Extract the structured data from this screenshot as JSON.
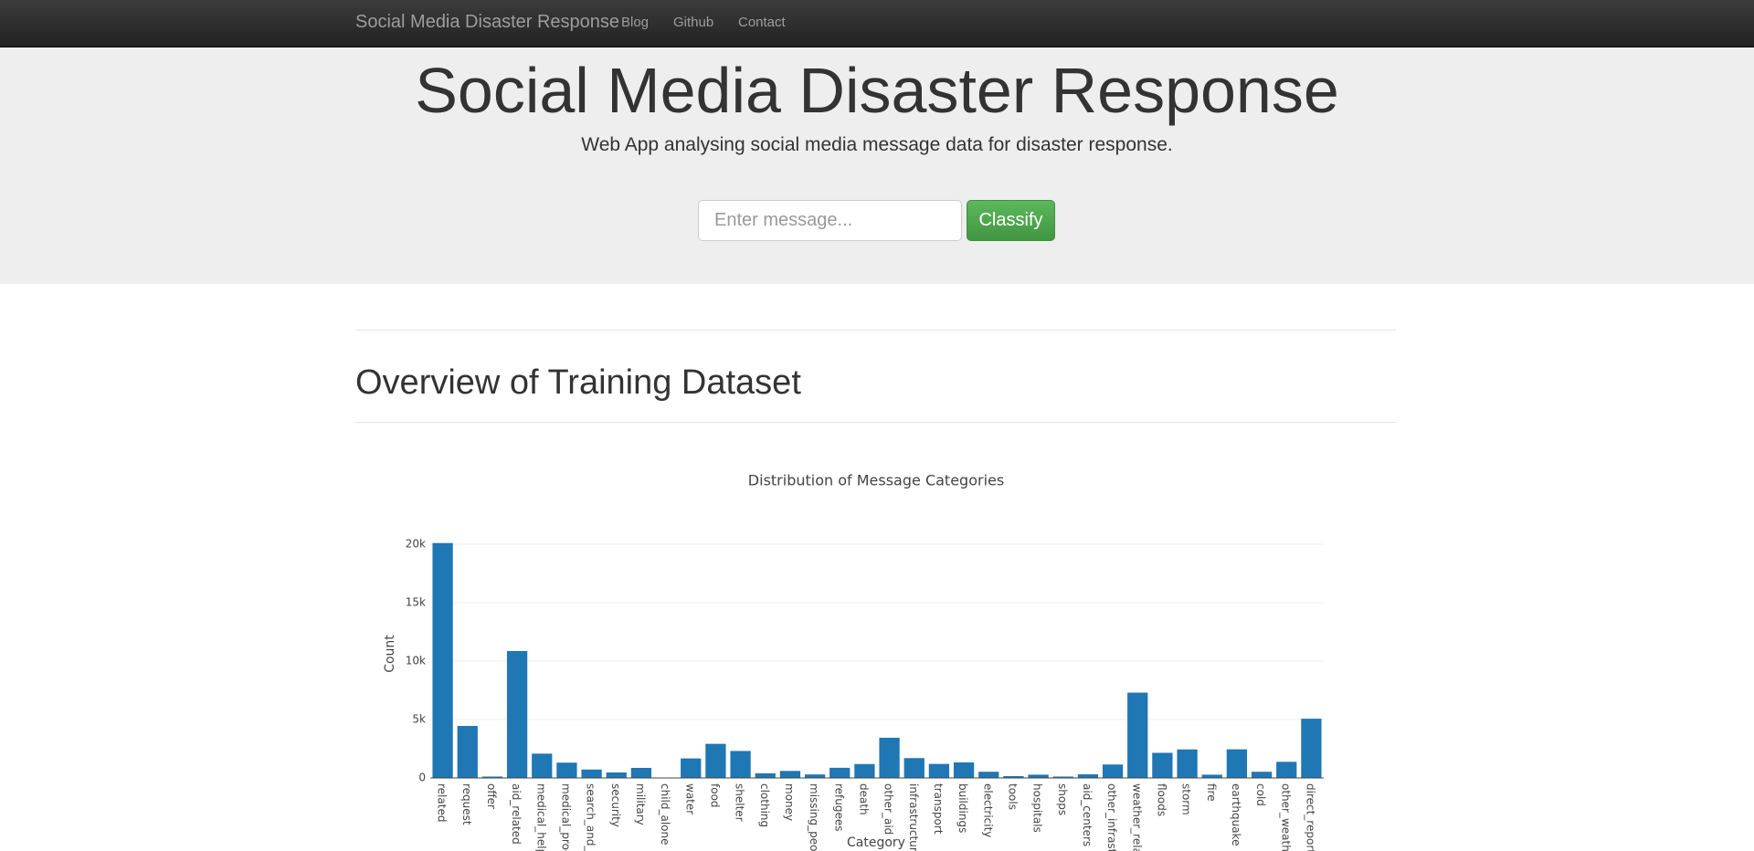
{
  "navbar": {
    "brand": "Social Media Disaster Response",
    "links": [
      "Blog",
      "Github",
      "Contact"
    ]
  },
  "jumbotron": {
    "title": "Social Media Disaster Response",
    "subtitle": "Web App analysing social media message data for disaster response.",
    "input_placeholder": "Enter message...",
    "button": "Classify"
  },
  "section": {
    "heading": "Overview of Training Dataset"
  },
  "chart_data": {
    "type": "bar",
    "title": "Distribution of Message Categories",
    "x_label": "Category",
    "y_label": "Count",
    "color": "#1f77b4",
    "grid": true,
    "categories": [
      "related",
      "request",
      "offer",
      "aid_related",
      "medical_help",
      "medical_prod",
      "search_and_r",
      "security",
      "military",
      "child_alone",
      "water",
      "food",
      "shelter",
      "clothing",
      "money",
      "missing_peop",
      "refugees",
      "death",
      "other_aid",
      "infrastructure",
      "transport",
      "buildings",
      "electricity",
      "tools",
      "hospitals",
      "shops",
      "aid_centers",
      "other_infrastr",
      "weather_relat",
      "floods",
      "storm",
      "fire",
      "earthquake",
      "cold",
      "other_weathe",
      "direct_report"
    ],
    "values": [
      20100,
      4450,
      120,
      10860,
      2080,
      1310,
      720,
      470,
      860,
      0,
      1670,
      2920,
      2310,
      400,
      600,
      300,
      870,
      1190,
      3440,
      1700,
      1200,
      1330,
      530,
      160,
      280,
      120,
      310,
      1150,
      7300,
      2150,
      2440,
      280,
      2450,
      530,
      1380,
      5070
    ],
    "ylim": [
      0,
      20000
    ],
    "yticks": [
      0,
      {
        "value": 5000,
        "label": "5k"
      },
      {
        "value": 10000,
        "label": "10k"
      },
      {
        "value": 15000,
        "label": "15k"
      },
      {
        "value": 20000,
        "label": "20k"
      }
    ]
  }
}
